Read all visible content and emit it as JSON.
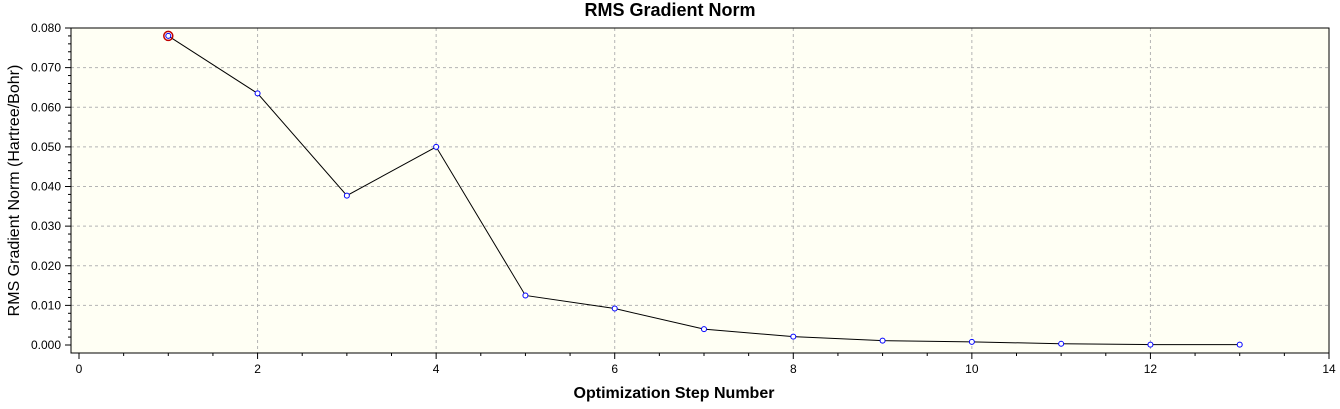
{
  "chart_data": {
    "type": "line",
    "title": "RMS Gradient Norm",
    "xlabel": "Optimization Step Number",
    "ylabel": "RMS Gradient Norm (Hartree/Bohr)",
    "xlim": [
      0,
      14
    ],
    "ylim": [
      0,
      0.08
    ],
    "x_ticks": [
      "0",
      "2",
      "4",
      "6",
      "8",
      "10",
      "12",
      "14"
    ],
    "x_tick_values": [
      0,
      2,
      4,
      6,
      8,
      10,
      12,
      14
    ],
    "y_ticks": [
      "0.000",
      "0.010",
      "0.020",
      "0.030",
      "0.040",
      "0.050",
      "0.060",
      "0.070",
      "0.080"
    ],
    "y_tick_values": [
      0,
      0.01,
      0.02,
      0.03,
      0.04,
      0.05,
      0.06,
      0.07,
      0.08
    ],
    "grid": true,
    "series": [
      {
        "x": [
          1,
          2,
          3,
          4,
          5,
          6,
          7,
          8,
          9,
          10,
          11,
          12,
          13
        ],
        "y": [
          0.078,
          0.0635,
          0.0377,
          0.05,
          0.0125,
          0.0092,
          0.004,
          0.0021,
          0.0011,
          0.0008,
          0.0003,
          0.0001,
          0.0001
        ]
      }
    ],
    "highlighted_point_index": 0,
    "colors": {
      "plot_background": "#fffff4",
      "line": "#000000",
      "marker_edge": "#0000ff",
      "highlight": "#c00000",
      "grid": "#b4b4b4"
    }
  }
}
